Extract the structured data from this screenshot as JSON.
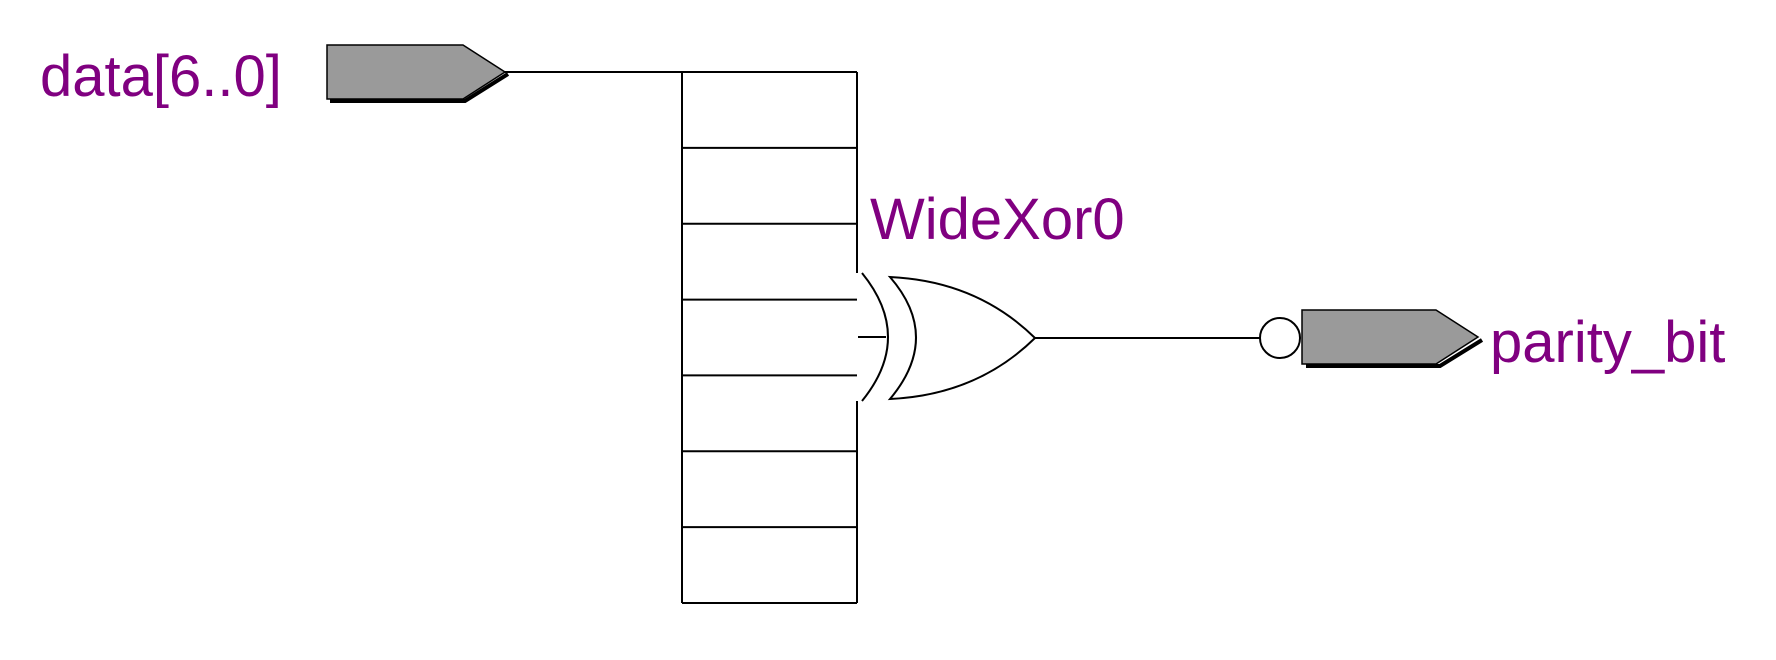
{
  "schematic": {
    "input_port": {
      "label": "data[6..0]"
    },
    "gate": {
      "label": "WideXor0",
      "type": "xor"
    },
    "output_port": {
      "label": "parity_bit",
      "inverted": true
    },
    "bus_width": 7,
    "colors": {
      "label": "#800080",
      "port_fill": "#9a9a9a",
      "wire": "#000000"
    }
  }
}
